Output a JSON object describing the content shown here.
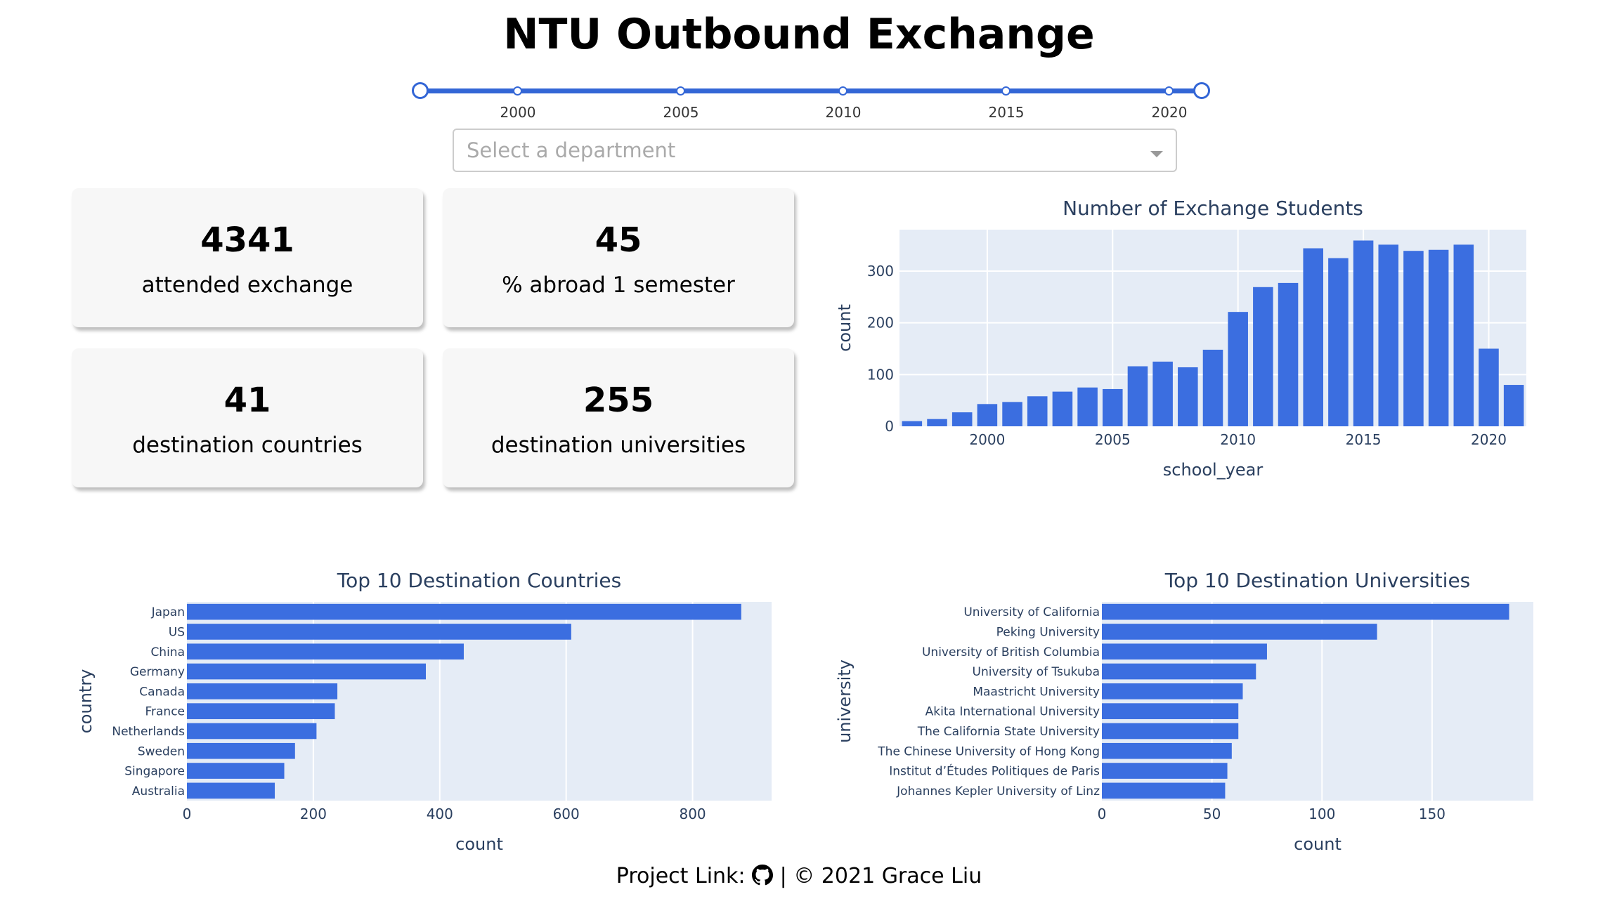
{
  "title": "NTU Outbound Exchange",
  "slider": {
    "ticks": [
      "2000",
      "2005",
      "2010",
      "2015",
      "2020"
    ],
    "range": [
      1997,
      2021
    ]
  },
  "dropdown": {
    "placeholder": "Select a department"
  },
  "cards": [
    {
      "value": "4341",
      "label": "attended exchange"
    },
    {
      "value": "45",
      "label": "% abroad 1 semester"
    },
    {
      "value": "41",
      "label": "destination countries"
    },
    {
      "value": "255",
      "label": "destination universities"
    }
  ],
  "colors": {
    "bar": "#3b6ee0",
    "plot_bg": "#e5ecf6",
    "accent": "#3366d6"
  },
  "chart_data": [
    {
      "type": "bar",
      "title": "Number of Exchange Students",
      "xlabel": "school_year",
      "ylabel": "count",
      "x": [
        1997,
        1998,
        1999,
        2000,
        2001,
        2002,
        2003,
        2004,
        2005,
        2006,
        2007,
        2008,
        2009,
        2010,
        2011,
        2012,
        2013,
        2014,
        2015,
        2016,
        2017,
        2018,
        2019,
        2020,
        2021
      ],
      "values": [
        10,
        14,
        27,
        43,
        47,
        58,
        67,
        75,
        72,
        116,
        125,
        114,
        148,
        221,
        269,
        277,
        344,
        325,
        359,
        351,
        339,
        341,
        351,
        150,
        80
      ],
      "xticks": [
        2000,
        2005,
        2010,
        2015,
        2020
      ],
      "yticks": [
        0,
        100,
        200,
        300
      ],
      "ylim": [
        0,
        380
      ],
      "grid": true
    },
    {
      "type": "bar",
      "orientation": "horizontal",
      "title": "Top 10 Destination Countries",
      "xlabel": "count",
      "ylabel": "country",
      "categories": [
        "Japan",
        "US",
        "China",
        "Germany",
        "Canada",
        "France",
        "Netherlands",
        "Sweden",
        "Singapore",
        "Australia"
      ],
      "values": [
        877,
        608,
        438,
        378,
        238,
        234,
        205,
        171,
        154,
        139
      ],
      "xticks": [
        0,
        200,
        400,
        600,
        800
      ],
      "xlim": [
        0,
        925
      ],
      "grid": true
    },
    {
      "type": "bar",
      "orientation": "horizontal",
      "title": "Top 10 Destination Universities",
      "xlabel": "count",
      "ylabel": "university",
      "categories": [
        "University of California",
        "Peking University",
        "University of British Columbia",
        "University of Tsukuba",
        "Maastricht University",
        "Akita International University",
        "The California State University",
        "The Chinese University of Hong Kong",
        "Institut d’Études Politiques de Paris",
        "Johannes Kepler University of Linz"
      ],
      "values": [
        185,
        125,
        75,
        70,
        64,
        62,
        62,
        59,
        57,
        56
      ],
      "xticks": [
        0,
        50,
        100,
        150
      ],
      "xlim": [
        0,
        196
      ],
      "grid": true
    }
  ],
  "footer": {
    "prefix": "Project Link:",
    "suffix": "| © 2021 Grace Liu"
  }
}
